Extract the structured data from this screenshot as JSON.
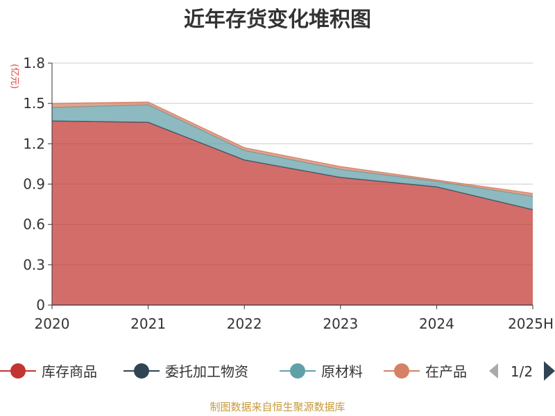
{
  "chart_data": {
    "type": "area",
    "stacked": true,
    "title": "近年存货变化堆积图",
    "y_unit": "(亿元)",
    "categories": [
      "2020",
      "2021",
      "2022",
      "2023",
      "2024",
      "2025H"
    ],
    "ylim": [
      0,
      1.8
    ],
    "y_ticks": [
      "0",
      "0.3",
      "0.6",
      "0.9",
      "1.2",
      "1.5",
      "1.8"
    ],
    "grid": true,
    "legend_position": "bottom",
    "series": [
      {
        "name": "库存商品",
        "color": "#c23531",
        "values": [
          1.37,
          1.36,
          1.08,
          0.95,
          0.88,
          0.71
        ]
      },
      {
        "name": "委托加工物资",
        "color": "#2f4554",
        "values": [
          0.0,
          0.0,
          0.0,
          0.0,
          0.0,
          0.0
        ]
      },
      {
        "name": "原材料",
        "color": "#61a0a8",
        "values": [
          0.1,
          0.13,
          0.07,
          0.06,
          0.04,
          0.1
        ]
      },
      {
        "name": "在产品",
        "color": "#d48265",
        "values": [
          0.03,
          0.02,
          0.02,
          0.02,
          0.01,
          0.02
        ]
      }
    ]
  },
  "legend": {
    "items": [
      "库存商品",
      "委托加工物资",
      "原材料",
      "在产品"
    ],
    "visible_truncated_last": "在产品",
    "pager": "1/2"
  },
  "footer": {
    "source": "制图数据来自恒生聚源数据库"
  },
  "icons": {
    "pager_prev": "triangle-left-icon",
    "pager_next": "triangle-right-icon"
  }
}
